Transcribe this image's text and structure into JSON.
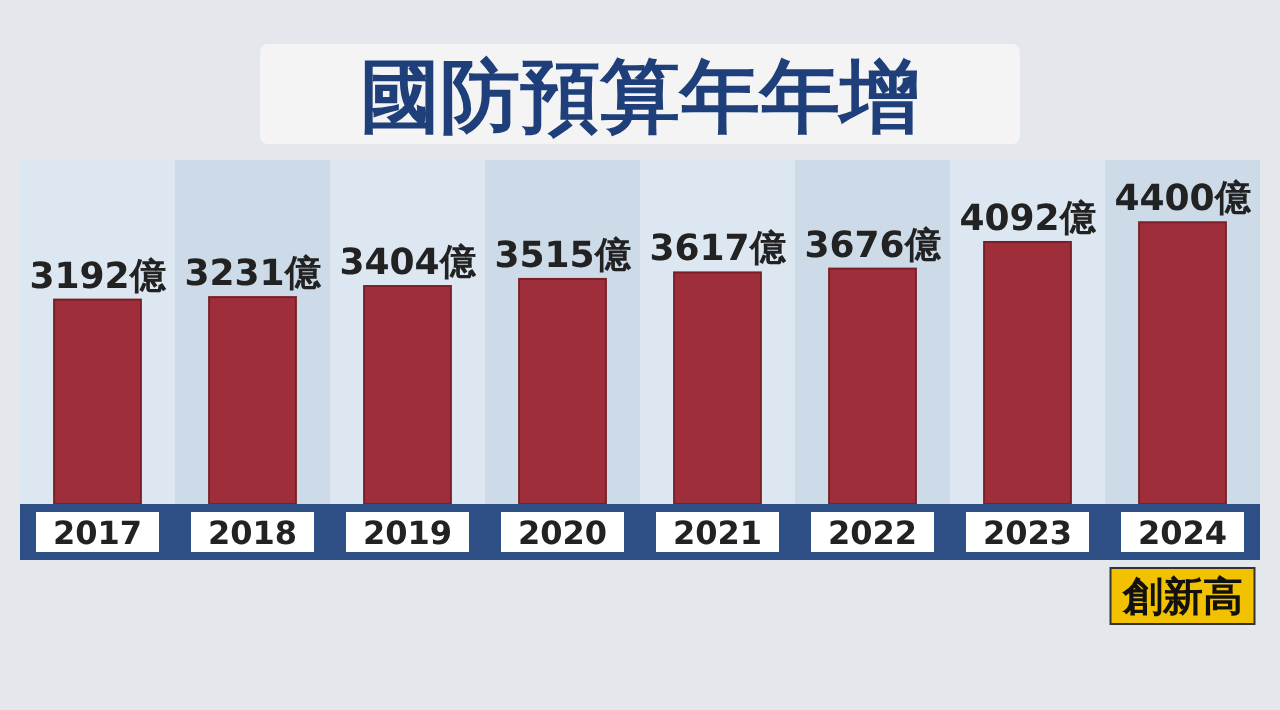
{
  "chart_data": {
    "type": "bar",
    "title": "國防預算年年增",
    "categories": [
      "2017",
      "2018",
      "2019",
      "2020",
      "2021",
      "2022",
      "2023",
      "2024"
    ],
    "values": [
      3192,
      3231,
      3404,
      3515,
      3617,
      3676,
      4092,
      4400
    ],
    "value_labels": [
      "3192億",
      "3231億",
      "3404億",
      "3515億",
      "3617億",
      "3676億",
      "4092億",
      "4400億"
    ],
    "color": "#9e2f3a",
    "annotations": [
      "創新高"
    ]
  }
}
